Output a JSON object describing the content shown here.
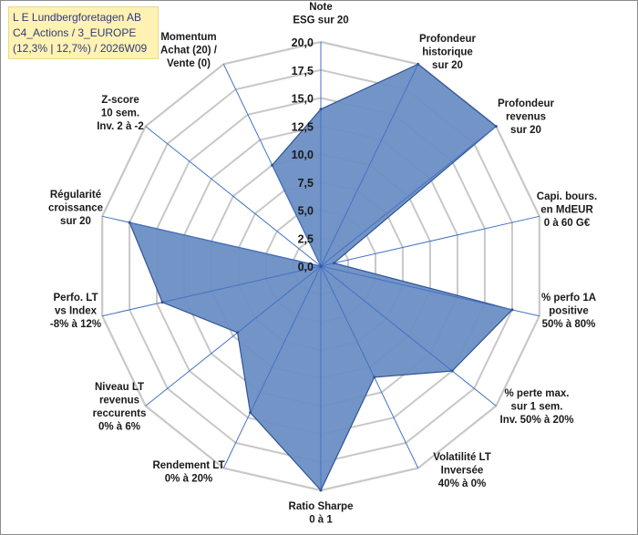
{
  "header": {
    "line1": "L E Lundbergforetagen AB",
    "line2": "C4_Actions / 3_EUROPE",
    "line3": "(12,3% | 12,7%) / 2026W09"
  },
  "chart_data": {
    "type": "radar",
    "rmin": 0,
    "rmax": 20,
    "ticks": [
      "0,0",
      "2,5",
      "5,0",
      "7,5",
      "10,0",
      "12,5",
      "15,0",
      "17,5",
      "20,0"
    ],
    "axes": [
      {
        "label": [
          "Note",
          "ESG sur 20"
        ],
        "value": 14.0
      },
      {
        "label": [
          "Profondeur",
          "historique",
          "sur 20"
        ],
        "value": 20.0
      },
      {
        "label": [
          "Profondeur",
          "revenus",
          "sur 20"
        ],
        "value": 20.0
      },
      {
        "label": [
          "Capi. bours.",
          "en MdEUR",
          "0 à 60 G€"
        ],
        "value": 1.2
      },
      {
        "label": [
          "% perfo 1A",
          "positive",
          "50% à 80%"
        ],
        "value": 17.5
      },
      {
        "label": [
          "% perte max.",
          "sur 1 sem.",
          "Inv. 50% à 20%"
        ],
        "value": 15.0
      },
      {
        "label": [
          "Volatilité LT",
          "Inversée",
          "40% à 0%"
        ],
        "value": 11.0
      },
      {
        "label": [
          "Ratio Sharpe",
          "0 à 1"
        ],
        "value": 20.0
      },
      {
        "label": [
          "Rendement LT",
          "0% à 20%"
        ],
        "value": 14.5
      },
      {
        "label": [
          "Niveau LT",
          "revenus",
          "reccurents",
          "0% à 6%"
        ],
        "value": 9.5
      },
      {
        "label": [
          "Perfo. LT",
          "vs Index",
          "-8% à 12%"
        ],
        "value": 14.5
      },
      {
        "label": [
          "Régularité",
          "croissance",
          "sur 20"
        ],
        "value": 17.5
      },
      {
        "label": [
          "Z-score",
          "10 sem.",
          "Inv. 2 à -2"
        ],
        "value": 0.0
      },
      {
        "label": [
          "Momentum",
          "Achat (20) /",
          "Vente (0)"
        ],
        "value": 10.0
      }
    ],
    "colors": {
      "fill": "#6a8ec4",
      "stroke": "#2f5496",
      "grid": "#c8c8c8",
      "spoke": "#4472c4"
    }
  }
}
